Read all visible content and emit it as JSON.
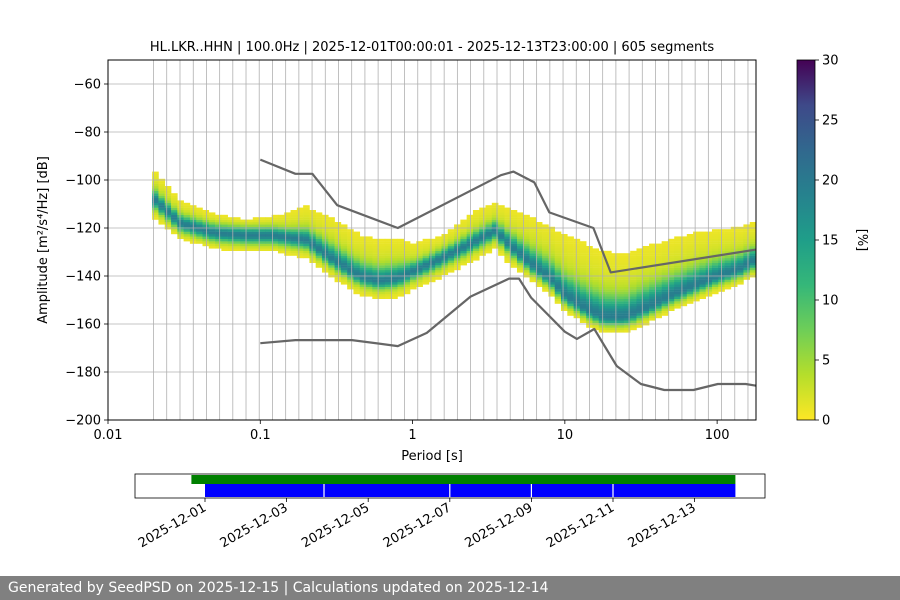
{
  "chart_data": {
    "type": "heatmap",
    "title": "HL.LKR..HHN | 100.0Hz | 2025-12-01T00:00:01 - 2025-12-13T23:00:00 | 605 segments",
    "xlabel": "Period [s]",
    "ylabel": "Amplitude [m²/s⁴/Hz] [dB]",
    "x_scale": "log",
    "xlim": [
      0.01,
      180
    ],
    "ylim": [
      -200,
      -50
    ],
    "x_ticks": [
      {
        "value": 0.01,
        "label": "0.01"
      },
      {
        "value": 0.1,
        "label": "0.1"
      },
      {
        "value": 1,
        "label": "1"
      },
      {
        "value": 10,
        "label": "10"
      },
      {
        "value": 100,
        "label": "100"
      }
    ],
    "y_ticks": [
      -200,
      -180,
      -160,
      -140,
      -120,
      -100,
      -80,
      -60
    ],
    "grid_periods": [
      0.0199,
      0.0243,
      0.0297,
      0.0363,
      0.0443,
      0.0541,
      0.066,
      0.0806,
      0.0984,
      0.1202,
      0.1468,
      0.1792,
      0.2188,
      0.2672,
      0.3263,
      0.3984,
      0.4865,
      0.5941,
      0.7254,
      0.8857,
      1.0816,
      1.3207,
      1.6126,
      1.9691,
      2.4044,
      2.936,
      3.585,
      4.3776,
      5.3454,
      6.5271,
      7.9701,
      9.7322,
      11.883,
      14.51,
      17.718,
      21.635,
      26.418,
      32.258,
      39.39,
      48.098,
      58.732,
      71.716,
      87.571,
      106.93,
      130.57,
      159.43
    ],
    "colorbar": {
      "label": "[%]",
      "min": 0,
      "max": 30,
      "ticks": [
        0,
        5,
        10,
        15,
        20,
        25,
        30
      ]
    },
    "mode_curve": {
      "periods": [
        0.02,
        0.03,
        0.05,
        0.08,
        0.12,
        0.2,
        0.3,
        0.45,
        0.6,
        0.8,
        1.0,
        1.5,
        2.5,
        3.5,
        4.5,
        6.0,
        8.0,
        10,
        14,
        18,
        25,
        35,
        50,
        70,
        100,
        140,
        180
      ],
      "db": [
        -108,
        -118,
        -122,
        -123,
        -123,
        -125,
        -133,
        -140,
        -142,
        -141,
        -138,
        -133,
        -126,
        -121,
        -128,
        -135,
        -141,
        -148,
        -154,
        -157,
        -157,
        -153,
        -148,
        -144,
        -140,
        -137,
        -133
      ]
    },
    "spread": {
      "db_below": [
        10,
        8,
        8,
        8,
        8,
        10,
        10,
        10,
        10,
        10,
        10,
        10,
        10,
        10,
        10,
        8,
        8,
        8,
        8,
        8,
        8,
        8,
        8,
        8,
        8,
        8,
        8
      ],
      "db_above": [
        16,
        12,
        10,
        8,
        10,
        18,
        22,
        22,
        22,
        22,
        15,
        12,
        16,
        15,
        20,
        25,
        28,
        32,
        35,
        35,
        33,
        33,
        30,
        28,
        25,
        22,
        20
      ]
    },
    "noise_models": [
      {
        "periods": [
          0.1,
          0.17,
          0.22,
          0.32,
          0.8,
          3.8,
          4.6,
          6.3,
          7.9,
          15.4,
          20,
          180
        ],
        "db": [
          -91.5,
          -97.4,
          -97.4,
          -110.5,
          -120,
          -98,
          -96.5,
          -101,
          -113.5,
          -120,
          -138.5,
          -129
        ]
      },
      {
        "periods": [
          0.1,
          0.17,
          0.4,
          0.8,
          1.24,
          2.4,
          4.3,
          5.0,
          6.0,
          10,
          12,
          15.6,
          21.9,
          31.6,
          45,
          70,
          101,
          154,
          180
        ],
        "db": [
          -168,
          -166.7,
          -166.7,
          -169.2,
          -163.7,
          -148.6,
          -141.1,
          -141.1,
          -149,
          -163.2,
          -166.2,
          -162.1,
          -177.5,
          -185,
          -187.5,
          -187.5,
          -185,
          -185,
          -185.7
        ]
      }
    ],
    "timeline": {
      "date_labels": [
        "2025-12-01",
        "2025-12-03",
        "2025-12-05",
        "2025-12-07",
        "2025-12-09",
        "2025-12-11",
        "2025-12-13"
      ],
      "data_start": "2025-11-30T16:00",
      "data_end": "2025-12-14T00:00",
      "bar_start": "2025-12-01T00:00",
      "bar_end": "2025-12-14T00:00",
      "gaps": [
        "2025-12-03T22:00",
        "2025-12-07T00:00",
        "2025-12-09T00:00",
        "2025-12-11T00:00"
      ]
    },
    "colors": {
      "good_data": "#008000",
      "data_availability": "#0000ff",
      "noise_model": "#666666",
      "grid": "#b0b0b0"
    }
  },
  "footer": {
    "text": "Generated by SeedPSD on 2025-12-15 | Calculations updated on 2025-12-14"
  }
}
